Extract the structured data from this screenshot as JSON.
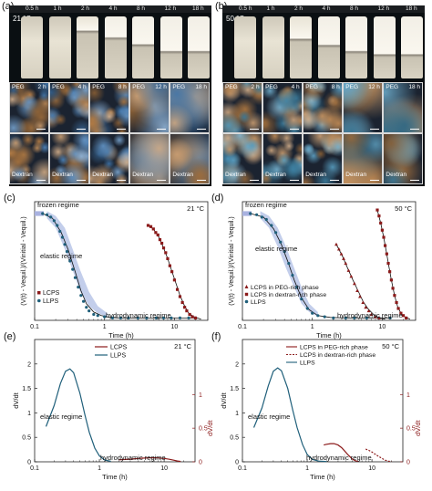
{
  "panels": {
    "a": {
      "label": "(a)",
      "temperature": "21 °C",
      "times": [
        "0.5 h",
        "1 h",
        "2 h",
        "4 h",
        "8 h",
        "12 h",
        "18 h"
      ],
      "micro_row1": [
        {
          "label": "PEG",
          "time": "2 h"
        },
        {
          "label": "PEG",
          "time": "4 h"
        },
        {
          "label": "PEG",
          "time": "8 h"
        },
        {
          "label": "PEG",
          "time": "12 h"
        },
        {
          "label": "PEG",
          "time": "18 h"
        }
      ],
      "micro_row2": [
        "Dextran",
        "Dextran",
        "Dextran",
        "Dextran",
        "Dextran"
      ]
    },
    "b": {
      "label": "(b)",
      "temperature": "50 °C",
      "times": [
        "0.5 h",
        "1 h",
        "2 h",
        "4 h",
        "8 h",
        "12 h",
        "18 h"
      ],
      "micro_row1": [
        {
          "label": "PEG",
          "time": "2 h"
        },
        {
          "label": "PEG",
          "time": "4 h"
        },
        {
          "label": "PEG",
          "time": "8 h"
        },
        {
          "label": "PEG",
          "time": "12 h"
        },
        {
          "label": "PEG",
          "time": "18 h"
        }
      ],
      "micro_row2": [
        "Dextran",
        "Dextran",
        "Dextran",
        "Dextran",
        "Dextran"
      ]
    }
  },
  "colors": {
    "llps": "#1f5f7a",
    "llps_band": "#b9c6e8",
    "lcps": "#8b1a1a",
    "frozen_band": "#a9b2e0"
  },
  "chart_data": [
    {
      "id": "c",
      "panel_label": "(c)",
      "type": "line",
      "temperature": "21 °C",
      "xscale": "log",
      "xlabel": "Time (h)",
      "ylabel": "(V(t) - Vequil.)/(Vinitial - Vequil.)",
      "xlim": [
        0.1,
        30
      ],
      "ylim": [
        0,
        1
      ],
      "xticks": [
        0.1,
        1,
        10
      ],
      "xticklabels": [
        "0.1",
        "1",
        "10"
      ],
      "annotations": [
        "frozen regime",
        "elastic regime",
        "hydrodynamic regime"
      ],
      "legend": [
        "LCPS",
        "LLPS"
      ],
      "series": [
        {
          "name": "LLPS",
          "color": "#1f5f7a",
          "marker": "circle",
          "x": [
            0.13,
            0.15,
            0.17,
            0.19,
            0.21,
            0.23,
            0.25,
            0.27,
            0.29,
            0.32,
            0.35,
            0.38,
            0.42,
            0.46,
            0.5,
            0.55,
            0.6,
            0.7,
            0.8,
            1.0,
            1.3,
            1.7,
            2.2,
            3,
            4,
            5.5,
            7,
            9,
            12,
            16,
            20
          ],
          "y": [
            0.9,
            0.89,
            0.87,
            0.84,
            0.8,
            0.75,
            0.7,
            0.64,
            0.58,
            0.5,
            0.43,
            0.36,
            0.28,
            0.21,
            0.16,
            0.11,
            0.08,
            0.05,
            0.04,
            0.03,
            0.02,
            0.02,
            0.02,
            0.02,
            0.02,
            0.02,
            0.02,
            0.02,
            0.02,
            0.02,
            0.02
          ],
          "fit_x": [
            0.13,
            0.18,
            0.24,
            0.3,
            0.38,
            0.46,
            0.55,
            0.7,
            0.9,
            1.2,
            1.6,
            2.5,
            5,
            10,
            20
          ],
          "fit_y": [
            0.9,
            0.86,
            0.74,
            0.6,
            0.41,
            0.25,
            0.14,
            0.07,
            0.04,
            0.025,
            0.02,
            0.02,
            0.02,
            0.02,
            0.02
          ],
          "band": {
            "x": [
              0.15,
              0.2,
              0.27,
              0.35,
              0.45,
              0.6,
              0.8,
              1.1
            ],
            "upper": [
              0.92,
              0.88,
              0.78,
              0.6,
              0.42,
              0.24,
              0.12,
              0.06
            ],
            "lower": [
              0.86,
              0.78,
              0.6,
              0.42,
              0.24,
              0.12,
              0.06,
              0.03
            ]
          }
        },
        {
          "name": "LCPS",
          "color": "#8b1a1a",
          "marker": "square",
          "x": [
            4.2,
            4.6,
            5.0,
            5.4,
            5.8,
            6.2,
            6.6,
            7.0,
            7.5,
            8.0,
            8.6,
            9.2,
            10,
            11,
            12,
            13,
            14,
            15,
            16.5,
            18,
            20
          ],
          "y": [
            0.8,
            0.79,
            0.77,
            0.74,
            0.72,
            0.68,
            0.65,
            0.61,
            0.57,
            0.52,
            0.46,
            0.41,
            0.34,
            0.26,
            0.2,
            0.15,
            0.11,
            0.08,
            0.05,
            0.03,
            0.02
          ],
          "fit_x": [
            4.2,
            5,
            6,
            7,
            8,
            9,
            10,
            12,
            14,
            16,
            19,
            24
          ],
          "fit_y": [
            0.8,
            0.77,
            0.7,
            0.61,
            0.52,
            0.43,
            0.35,
            0.21,
            0.12,
            0.06,
            0.03,
            0.01
          ]
        }
      ]
    },
    {
      "id": "d",
      "panel_label": "(d)",
      "type": "line",
      "temperature": "50 °C",
      "xscale": "log",
      "xlabel": "Time (h)",
      "ylabel": "(V(t) - Vequil.)/(Vinitial - Vequil.)",
      "xlim": [
        0.1,
        30
      ],
      "ylim": [
        0,
        1
      ],
      "xticks": [
        0.1,
        1,
        10
      ],
      "xticklabels": [
        "0.1",
        "1",
        "10"
      ],
      "annotations": [
        "frozen regime",
        "elastic regime",
        "hydrodynamic regime"
      ],
      "legend": [
        "LCPS in PEG-rich phase",
        "LCPS in dextran-rich phase",
        "LLPS"
      ],
      "series": [
        {
          "name": "LLPS",
          "color": "#1f5f7a",
          "marker": "circle",
          "x": [
            0.13,
            0.16,
            0.19,
            0.22,
            0.26,
            0.3,
            0.35,
            0.4,
            0.46,
            0.52,
            0.6,
            0.7,
            0.85,
            1.0,
            1.2,
            1.5,
            2,
            3,
            4,
            6,
            9,
            13
          ],
          "y": [
            0.9,
            0.89,
            0.87,
            0.85,
            0.8,
            0.74,
            0.66,
            0.58,
            0.48,
            0.38,
            0.28,
            0.18,
            0.1,
            0.06,
            0.04,
            0.03,
            0.02,
            0.02,
            0.02,
            0.02,
            0.02,
            0.02
          ],
          "fit_x": [
            0.13,
            0.2,
            0.28,
            0.36,
            0.45,
            0.55,
            0.7,
            0.9,
            1.2,
            1.8,
            3,
            6,
            13
          ],
          "fit_y": [
            0.9,
            0.87,
            0.77,
            0.64,
            0.49,
            0.34,
            0.19,
            0.09,
            0.04,
            0.025,
            0.02,
            0.02,
            0.02
          ],
          "band": {
            "x": [
              0.18,
              0.24,
              0.32,
              0.42,
              0.55,
              0.7,
              0.9,
              1.2
            ],
            "upper": [
              0.92,
              0.88,
              0.78,
              0.62,
              0.44,
              0.28,
              0.14,
              0.07
            ],
            "lower": [
              0.86,
              0.78,
              0.62,
              0.44,
              0.28,
              0.14,
              0.07,
              0.03
            ]
          }
        },
        {
          "name": "LCPS in PEG-rich phase",
          "color": "#8b1a1a",
          "marker": "triangle",
          "x": [
            2.2,
            2.4,
            2.6,
            2.8,
            3.0,
            3.3,
            3.6,
            4.0,
            4.4,
            4.8,
            5.3,
            5.8,
            6.4,
            7,
            8,
            9
          ],
          "y": [
            0.64,
            0.6,
            0.56,
            0.52,
            0.48,
            0.42,
            0.37,
            0.31,
            0.25,
            0.2,
            0.15,
            0.11,
            0.08,
            0.05,
            0.03,
            0.02
          ],
          "fit_x": [
            2.2,
            2.7,
            3.2,
            3.8,
            4.5,
            5.3,
            6.2,
            7.5,
            9,
            11
          ],
          "fit_y": [
            0.64,
            0.54,
            0.44,
            0.34,
            0.25,
            0.16,
            0.1,
            0.05,
            0.02,
            0.01
          ]
        },
        {
          "name": "LCPS in dextran-rich phase",
          "color": "#8b1a1a",
          "marker": "square",
          "x": [
            8.5,
            9.0,
            9.5,
            10,
            10.5,
            11,
            11.6,
            12.2,
            12.8,
            13.5,
            14.2,
            15,
            16,
            17,
            18.5,
            20,
            22
          ],
          "y": [
            0.93,
            0.88,
            0.82,
            0.76,
            0.7,
            0.63,
            0.56,
            0.48,
            0.41,
            0.34,
            0.27,
            0.21,
            0.15,
            0.1,
            0.06,
            0.04,
            0.02
          ],
          "fit_x": [
            8.5,
            9.5,
            10.5,
            11.5,
            12.5,
            13.5,
            15,
            16.5,
            18.5,
            21,
            25
          ],
          "fit_y": [
            0.93,
            0.82,
            0.7,
            0.57,
            0.45,
            0.34,
            0.21,
            0.12,
            0.06,
            0.03,
            0.01
          ]
        }
      ]
    },
    {
      "id": "e",
      "panel_label": "(e)",
      "type": "line",
      "temperature": "21 °C",
      "xscale": "log",
      "xlabel": "Time (h)",
      "ylabel": "dV/dt",
      "ylabel_right": "dV/dt",
      "xlim": [
        0.1,
        30
      ],
      "ylim": [
        0,
        2.5
      ],
      "ylim_right": [
        0,
        1
      ],
      "xticks": [
        0.1,
        1,
        10
      ],
      "xticklabels": [
        "0.1",
        "1",
        "10"
      ],
      "yticks": [
        0,
        0.5,
        1,
        1.5,
        2
      ],
      "yticklabels": [
        "0",
        "0.5",
        "1",
        "1.5",
        "2"
      ],
      "yticks_right": [
        0,
        0.5,
        1
      ],
      "yticklabels_right": [
        "0",
        "0.5",
        "1"
      ],
      "annotations": [
        "elastic regime",
        "hydrodynamic regime"
      ],
      "legend": [
        "LCPS",
        "LLPS"
      ],
      "series": [
        {
          "name": "LLPS",
          "axis": "left",
          "color": "#1f5f7a",
          "x": [
            0.15,
            0.2,
            0.25,
            0.3,
            0.35,
            0.4,
            0.5,
            0.6,
            0.7,
            0.85,
            1.0,
            1.2,
            1.5
          ],
          "y": [
            0.72,
            1.15,
            1.6,
            1.85,
            1.9,
            1.82,
            1.4,
            0.95,
            0.6,
            0.28,
            0.12,
            0.04,
            0.01
          ]
        },
        {
          "name": "LCPS",
          "axis": "right",
          "color": "#8b1a1a",
          "x": [
            2,
            2.5,
            3,
            4,
            5,
            6,
            7,
            8,
            10,
            12,
            14,
            16,
            18
          ],
          "y": [
            0.03,
            0.035,
            0.04,
            0.05,
            0.055,
            0.06,
            0.06,
            0.058,
            0.05,
            0.038,
            0.025,
            0.012,
            0.005
          ]
        }
      ]
    },
    {
      "id": "f",
      "panel_label": "(f)",
      "type": "line",
      "temperature": "50 °C",
      "xscale": "log",
      "xlabel": "Time (h)",
      "ylabel": "dV/dt",
      "ylabel_right": "dV/dt",
      "xlim": [
        0.1,
        30
      ],
      "ylim": [
        0,
        2.5
      ],
      "ylim_right": [
        0,
        1
      ],
      "xticks": [
        0.1,
        1,
        10
      ],
      "xticklabels": [
        "0.1",
        "1",
        "10"
      ],
      "yticks": [
        0,
        0.5,
        1,
        1.5,
        2
      ],
      "yticklabels": [
        "0",
        "0.5",
        "1",
        "1.5",
        "2"
      ],
      "yticks_right": [
        0,
        0.5,
        1
      ],
      "yticklabels_right": [
        "0",
        "0.5",
        "1"
      ],
      "annotations": [
        "elastic regime",
        "hydrodynamic regime"
      ],
      "legend": [
        "LCPS in PEG-rich phase",
        "LCPS in dextran-rich phase",
        "LLPS"
      ],
      "series": [
        {
          "name": "LLPS",
          "axis": "left",
          "color": "#1f5f7a",
          "x": [
            0.15,
            0.2,
            0.25,
            0.3,
            0.35,
            0.4,
            0.5,
            0.6,
            0.7,
            0.85,
            1.0,
            1.2,
            1.5,
            2
          ],
          "y": [
            0.7,
            1.1,
            1.55,
            1.85,
            1.92,
            1.86,
            1.5,
            1.05,
            0.7,
            0.35,
            0.15,
            0.05,
            0.015,
            0.005
          ]
        },
        {
          "name": "LCPS in PEG-rich phase",
          "axis": "right",
          "color": "#8b1a1a",
          "x": [
            1.8,
            2.0,
            2.3,
            2.6,
            3.0,
            3.4,
            3.8,
            4.3,
            5,
            5.6,
            6.2
          ],
          "y": [
            0.25,
            0.26,
            0.27,
            0.27,
            0.25,
            0.21,
            0.16,
            0.1,
            0.04,
            0.015,
            0.005
          ]
        },
        {
          "name": "LCPS in dextran-rich phase",
          "axis": "right",
          "color": "#8b1a1a",
          "dashed": true,
          "x": [
            8,
            9,
            10,
            11,
            12,
            13,
            14,
            15,
            16,
            18,
            20
          ],
          "y": [
            0.19,
            0.17,
            0.145,
            0.12,
            0.095,
            0.075,
            0.055,
            0.04,
            0.025,
            0.01,
            0.005
          ]
        }
      ]
    }
  ]
}
